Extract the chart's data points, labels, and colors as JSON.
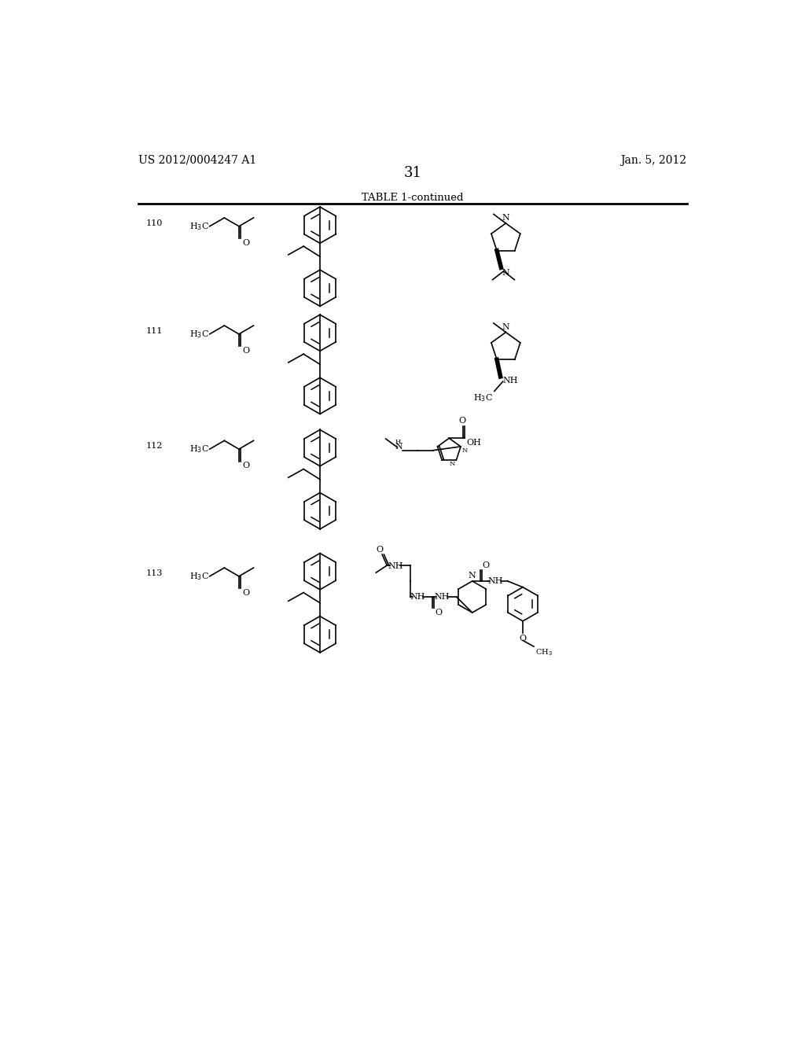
{
  "title_left": "US 2012/0004247 A1",
  "title_right": "Jan. 5, 2012",
  "page_number": "31",
  "table_title": "TABLE 1-continued",
  "background_color": "#ffffff",
  "text_color": "#000000",
  "row_numbers": [
    "110",
    "111",
    "112",
    "113"
  ],
  "lw": 1.2,
  "fs_small": 8,
  "fs_label": 9
}
